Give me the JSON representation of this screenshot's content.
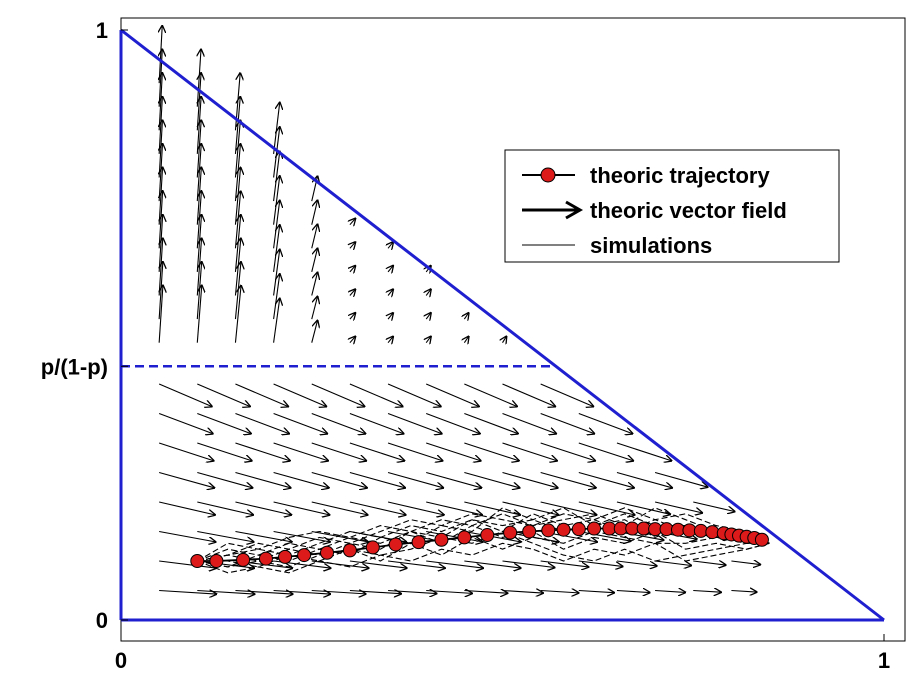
{
  "chart_data": {
    "type": "line",
    "title": "",
    "xlabel": "",
    "ylabel": "",
    "xlim": [
      0,
      1
    ],
    "ylim": [
      0,
      1
    ],
    "x_ticks": [
      {
        "value": 0,
        "label": "0"
      },
      {
        "value": 1,
        "label": "1"
      }
    ],
    "y_ticks": [
      {
        "value": 0,
        "label": "0"
      },
      {
        "value": 0.43,
        "label": "p/(1-p)"
      },
      {
        "value": 1,
        "label": "1"
      }
    ],
    "grid": false,
    "legend_position": "top-right",
    "legend": [
      {
        "key": "trajectory",
        "label": "theoric trajectory"
      },
      {
        "key": "vector_field",
        "label": "theoric vector field"
      },
      {
        "key": "simulations",
        "label": "simulations"
      }
    ],
    "simplex_boundary": {
      "vertices": [
        [
          0,
          0
        ],
        [
          1,
          0
        ],
        [
          0,
          1
        ]
      ],
      "color": "#1f1fd0"
    },
    "threshold_line": {
      "y": 0.43,
      "x_range": [
        0,
        0.57
      ],
      "style": "dashed",
      "color": "#1f1fd0"
    },
    "series": [
      {
        "name": "theoric trajectory",
        "color": "#dd1a1a",
        "x": [
          0.1,
          0.125,
          0.16,
          0.19,
          0.215,
          0.24,
          0.27,
          0.3,
          0.33,
          0.36,
          0.39,
          0.42,
          0.45,
          0.48,
          0.51,
          0.535,
          0.56,
          0.58,
          0.6,
          0.62,
          0.64,
          0.655,
          0.67,
          0.685,
          0.7,
          0.715,
          0.73,
          0.745,
          0.76,
          0.775,
          0.79,
          0.8,
          0.81,
          0.82,
          0.83,
          0.84
        ],
        "y": [
          0.1,
          0.1,
          0.102,
          0.104,
          0.107,
          0.11,
          0.114,
          0.118,
          0.123,
          0.128,
          0.132,
          0.136,
          0.14,
          0.144,
          0.148,
          0.15,
          0.152,
          0.153,
          0.154,
          0.155,
          0.155,
          0.155,
          0.155,
          0.155,
          0.154,
          0.154,
          0.153,
          0.152,
          0.151,
          0.149,
          0.147,
          0.145,
          0.143,
          0.141,
          0.139,
          0.136
        ]
      }
    ],
    "simulations": [
      {
        "x": [
          0.1,
          0.14,
          0.18,
          0.22,
          0.26,
          0.3,
          0.34,
          0.38,
          0.42,
          0.46,
          0.5,
          0.54,
          0.58,
          0.62,
          0.66,
          0.7,
          0.74,
          0.78,
          0.82,
          0.85
        ],
        "y": [
          0.1,
          0.11,
          0.1,
          0.12,
          0.11,
          0.13,
          0.12,
          0.15,
          0.14,
          0.17,
          0.15,
          0.18,
          0.16,
          0.17,
          0.15,
          0.17,
          0.15,
          0.14,
          0.14,
          0.13
        ]
      },
      {
        "x": [
          0.1,
          0.14,
          0.18,
          0.22,
          0.26,
          0.3,
          0.34,
          0.38,
          0.42,
          0.46,
          0.5,
          0.54,
          0.58,
          0.62,
          0.66,
          0.7,
          0.74,
          0.78,
          0.82,
          0.85
        ],
        "y": [
          0.1,
          0.09,
          0.11,
          0.1,
          0.12,
          0.11,
          0.14,
          0.13,
          0.16,
          0.15,
          0.19,
          0.17,
          0.19,
          0.16,
          0.18,
          0.16,
          0.16,
          0.15,
          0.14,
          0.13
        ]
      },
      {
        "x": [
          0.1,
          0.14,
          0.18,
          0.22,
          0.26,
          0.3,
          0.34,
          0.38,
          0.42,
          0.46,
          0.5,
          0.54,
          0.58,
          0.62,
          0.66,
          0.7,
          0.74,
          0.78,
          0.82,
          0.85
        ],
        "y": [
          0.1,
          0.12,
          0.11,
          0.13,
          0.12,
          0.14,
          0.13,
          0.15,
          0.13,
          0.16,
          0.14,
          0.15,
          0.12,
          0.14,
          0.13,
          0.15,
          0.12,
          0.13,
          0.12,
          0.13
        ]
      },
      {
        "x": [
          0.1,
          0.14,
          0.18,
          0.22,
          0.26,
          0.3,
          0.34,
          0.38,
          0.42,
          0.46,
          0.5,
          0.54,
          0.58,
          0.62,
          0.66,
          0.7,
          0.74,
          0.78,
          0.82,
          0.85
        ],
        "y": [
          0.1,
          0.08,
          0.09,
          0.08,
          0.1,
          0.09,
          0.11,
          0.1,
          0.12,
          0.11,
          0.13,
          0.12,
          0.1,
          0.12,
          0.11,
          0.13,
          0.1,
          0.11,
          0.12,
          0.13
        ]
      },
      {
        "x": [
          0.1,
          0.14,
          0.18,
          0.22,
          0.26,
          0.3,
          0.34,
          0.38,
          0.42,
          0.46,
          0.5,
          0.54,
          0.58,
          0.62,
          0.66,
          0.7,
          0.74,
          0.78,
          0.82,
          0.85
        ],
        "y": [
          0.1,
          0.11,
          0.13,
          0.12,
          0.14,
          0.13,
          0.15,
          0.17,
          0.16,
          0.18,
          0.17,
          0.16,
          0.18,
          0.17,
          0.19,
          0.17,
          0.18,
          0.16,
          0.15,
          0.13
        ]
      },
      {
        "x": [
          0.1,
          0.14,
          0.18,
          0.22,
          0.26,
          0.3,
          0.34,
          0.38,
          0.42,
          0.46,
          0.5,
          0.54,
          0.58,
          0.62,
          0.66,
          0.7,
          0.74,
          0.78,
          0.82,
          0.85
        ],
        "y": [
          0.1,
          0.1,
          0.09,
          0.11,
          0.1,
          0.12,
          0.1,
          0.13,
          0.11,
          0.14,
          0.12,
          0.14,
          0.13,
          0.15,
          0.14,
          0.13,
          0.13,
          0.14,
          0.13,
          0.13
        ]
      },
      {
        "x": [
          0.1,
          0.14,
          0.18,
          0.22,
          0.26,
          0.3,
          0.34,
          0.38,
          0.42,
          0.46,
          0.5,
          0.54,
          0.58,
          0.62,
          0.66,
          0.7,
          0.74,
          0.78,
          0.82,
          0.85
        ],
        "y": [
          0.1,
          0.13,
          0.12,
          0.14,
          0.15,
          0.14,
          0.16,
          0.15,
          0.17,
          0.16,
          0.18,
          0.16,
          0.17,
          0.18,
          0.16,
          0.19,
          0.17,
          0.15,
          0.14,
          0.13
        ]
      },
      {
        "x": [
          0.1,
          0.14,
          0.18,
          0.22,
          0.26,
          0.3,
          0.34,
          0.38,
          0.42,
          0.46,
          0.5,
          0.54,
          0.58,
          0.62,
          0.66,
          0.7,
          0.74,
          0.78,
          0.82,
          0.85
        ],
        "y": [
          0.1,
          0.09,
          0.1,
          0.09,
          0.11,
          0.12,
          0.11,
          0.12,
          0.14,
          0.13,
          0.15,
          0.13,
          0.11,
          0.1,
          0.12,
          0.1,
          0.11,
          0.12,
          0.13,
          0.13
        ]
      },
      {
        "x": [
          0.1,
          0.14,
          0.18,
          0.22,
          0.26,
          0.3,
          0.34,
          0.38,
          0.42,
          0.46,
          0.5,
          0.54,
          0.58,
          0.62,
          0.66,
          0.7,
          0.74,
          0.78,
          0.82,
          0.85
        ],
        "y": [
          0.1,
          0.11,
          0.12,
          0.11,
          0.13,
          0.15,
          0.14,
          0.16,
          0.15,
          0.17,
          0.16,
          0.17,
          0.15,
          0.16,
          0.17,
          0.14,
          0.16,
          0.15,
          0.14,
          0.13
        ]
      }
    ],
    "vector_field": {
      "upper_region": {
        "columns": [
          0.05,
          0.1,
          0.15,
          0.2,
          0.25,
          0.3,
          0.35,
          0.4,
          0.45,
          0.5,
          0.55
        ],
        "rows": [
          0.47,
          0.51,
          0.55,
          0.59,
          0.63,
          0.67,
          0.71,
          0.75,
          0.79,
          0.83,
          0.87,
          0.91,
          0.95
        ],
        "direction": "mostly upward",
        "magnitude_trend": "largest near x=0, decreasing toward the hypotenuse"
      },
      "lower_region": {
        "columns": [
          0.05,
          0.1,
          0.15,
          0.2,
          0.25,
          0.3,
          0.35,
          0.4,
          0.45,
          0.5,
          0.55,
          0.6,
          0.65,
          0.7,
          0.75,
          0.8
        ],
        "rows": [
          0.05,
          0.1,
          0.15,
          0.2,
          0.25,
          0.3,
          0.35,
          0.4
        ],
        "direction": "rightward and downward toward the trajectory",
        "magnitude_trend": "largest near the dashed threshold and x=0, decreasing toward the bottom-right"
      }
    }
  }
}
